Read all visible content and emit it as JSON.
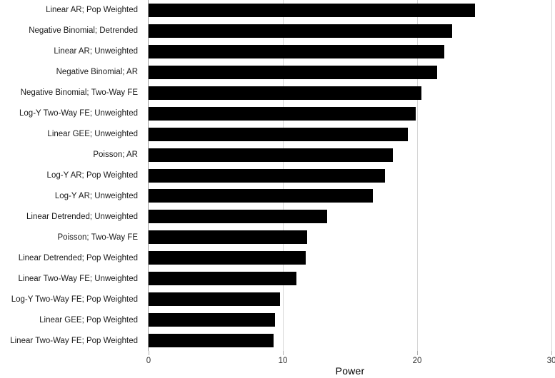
{
  "chart_data": {
    "type": "bar",
    "orientation": "horizontal",
    "title": "",
    "xlabel": "Power",
    "ylabel": "",
    "xlim": [
      0,
      30
    ],
    "x_tick_labels": [
      "0",
      "10",
      "20",
      "30"
    ],
    "x_tick_values": [
      0,
      10,
      20,
      30
    ],
    "grid": "vertical gridlines at x ticks, no horizontal gridlines",
    "legend": "none",
    "categories": [
      "Linear AR; Pop Weighted",
      "Negative Binomial; Detrended",
      "Linear AR; Unweighted",
      "Negative Binomial; AR",
      "Negative Binomial; Two-Way FE",
      "Log-Y Two-Way FE; Unweighted",
      "Linear GEE; Unweighted",
      "Poisson; AR",
      "Log-Y AR; Pop Weighted",
      "Log-Y AR; Unweighted",
      "Linear Detrended; Unweighted",
      "Poisson; Two-Way FE",
      "Linear Detrended; Pop Weighted",
      "Linear Two-Way FE; Unweighted",
      "Log-Y Two-Way FE; Pop Weighted",
      "Linear GEE; Pop Weighted",
      "Linear Two-Way FE; Pop Weighted"
    ],
    "values": [
      24.3,
      22.6,
      22.0,
      21.5,
      20.3,
      19.9,
      19.3,
      18.2,
      17.6,
      16.7,
      13.3,
      11.8,
      11.7,
      11.0,
      9.8,
      9.4,
      9.3
    ],
    "colors": {
      "bar": "#000000",
      "gridline": "#d6d6d6",
      "axis_line": "#9b9b9b",
      "tick": "#b0b0b0",
      "category_text": "#1a1a1a",
      "tick_text": "#333333",
      "axis_title_text": "#000000",
      "background": "#ffffff"
    }
  }
}
